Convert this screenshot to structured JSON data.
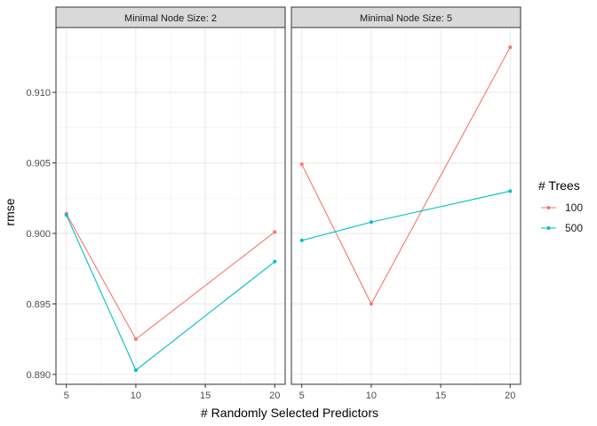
{
  "chart_data": {
    "type": "line",
    "xlabel": "# Randomly Selected Predictors",
    "ylabel": "rmse",
    "xlim": [
      4.25,
      20.75
    ],
    "ylim": [
      0.8893,
      0.9146
    ],
    "x_ticks": [
      5,
      10,
      15,
      20
    ],
    "y_ticks": [
      0.89,
      0.895,
      0.9,
      0.905,
      0.91
    ],
    "grid": true,
    "legend": {
      "title": "# Trees",
      "placement": "right"
    },
    "colors": {
      "100": "#F8766D",
      "500": "#00BFC4"
    },
    "panels": [
      {
        "strip": "Minimal Node Size: 2",
        "series": [
          {
            "name": "100",
            "x": [
              5,
              10,
              20
            ],
            "y": [
              0.9014,
              0.8925,
              0.9001
            ]
          },
          {
            "name": "500",
            "x": [
              5,
              10,
              20
            ],
            "y": [
              0.9013,
              0.8903,
              0.898
            ]
          }
        ]
      },
      {
        "strip": "Minimal Node Size: 5",
        "series": [
          {
            "name": "100",
            "x": [
              5,
              10,
              20
            ],
            "y": [
              0.9049,
              0.895,
              0.9132
            ]
          },
          {
            "name": "500",
            "x": [
              5,
              10,
              20
            ],
            "y": [
              0.8995,
              0.9008,
              0.903
            ]
          }
        ]
      }
    ]
  }
}
